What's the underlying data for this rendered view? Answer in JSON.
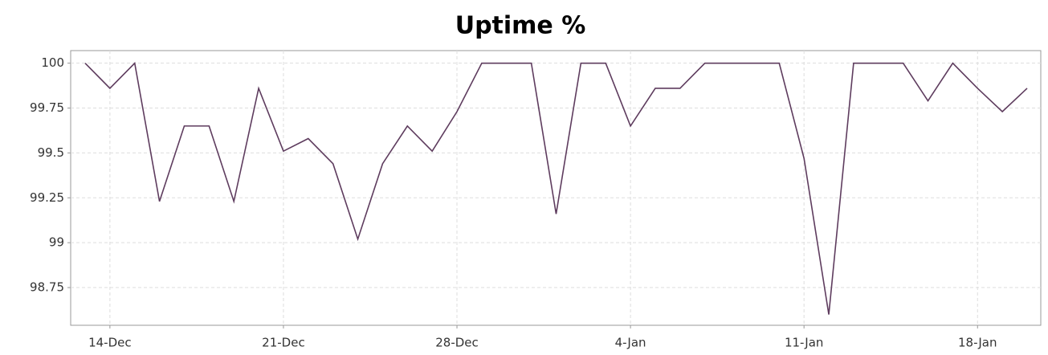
{
  "chart_data": {
    "type": "line",
    "title": "Uptime %",
    "categories": [
      null,
      "14-Dec",
      null,
      null,
      null,
      null,
      null,
      null,
      "21-Dec",
      null,
      null,
      null,
      null,
      null,
      null,
      "28-Dec",
      null,
      null,
      null,
      null,
      null,
      null,
      "4-Jan",
      null,
      null,
      null,
      null,
      null,
      null,
      "11-Jan",
      null,
      null,
      null,
      null,
      null,
      null,
      "18-Jan",
      null,
      null
    ],
    "values": [
      100,
      99.86,
      100,
      99.23,
      99.65,
      99.65,
      99.23,
      99.86,
      99.51,
      99.58,
      99.44,
      99.02,
      99.44,
      99.65,
      99.51,
      99.73,
      100,
      100,
      100,
      99.16,
      100,
      100,
      99.65,
      99.86,
      99.86,
      100,
      100,
      100,
      100,
      99.47,
      98.6,
      100,
      100,
      100,
      99.79,
      100,
      99.86,
      99.73,
      99.86
    ],
    "color": "#5e3c5e",
    "ylim": [
      98.54,
      100.07
    ],
    "yticks": [
      98.75,
      99,
      99.25,
      99.5,
      99.75,
      100
    ],
    "grid": true
  }
}
